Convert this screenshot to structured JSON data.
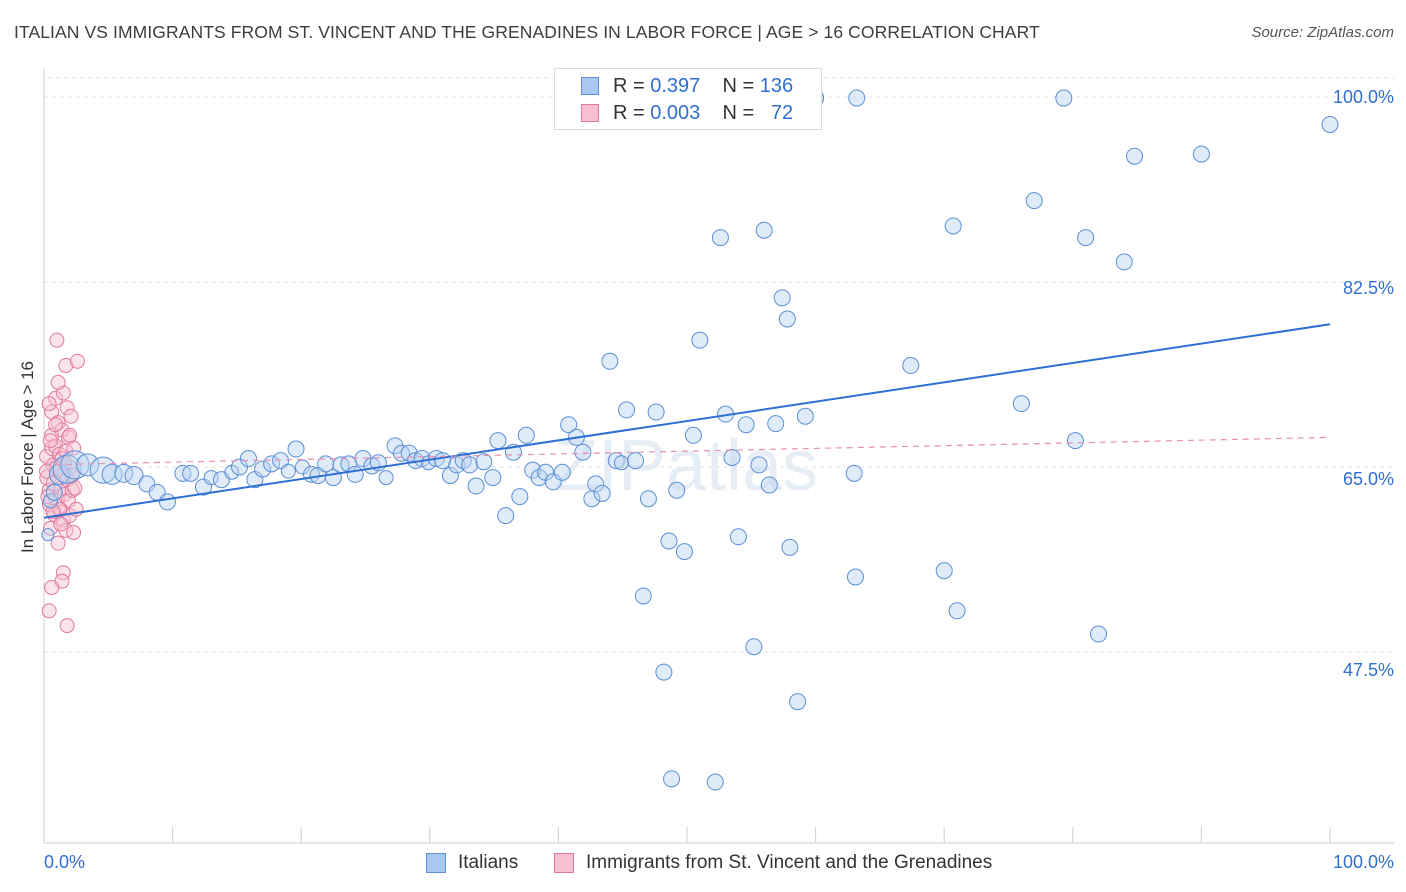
{
  "title": "ITALIAN VS IMMIGRANTS FROM ST. VINCENT AND THE GRENADINES IN LABOR FORCE | AGE > 16 CORRELATION CHART",
  "source": "Source: ZipAtlas.com",
  "watermark": "ZIPatlas",
  "legend_top": {
    "rows": [
      {
        "r_label": "R =",
        "r_value": "0.397",
        "n_label": "N =",
        "n_value": "136",
        "color": "#a9c8ef",
        "border": "#5b8fd6"
      },
      {
        "r_label": "R =",
        "r_value": "0.003",
        "n_label": "N =",
        "n_value": "72",
        "color": "#f7c0d0",
        "border": "#e07aa0"
      }
    ]
  },
  "bottom_legend": [
    {
      "label": "Italians",
      "color": "#a9c8ef",
      "border": "#5b8fd6"
    },
    {
      "label": "Immigrants from St. Vincent and the Grenadines",
      "color": "#f7c0d0",
      "border": "#e07aa0"
    }
  ],
  "axes": {
    "ylabel": "In Labor Force | Age > 16",
    "x_min_label": "0.0%",
    "x_max_label": "100.0%",
    "y_ticks": [
      "100.0%",
      "82.5%",
      "65.0%",
      "47.5%"
    ]
  },
  "chart_data": {
    "type": "scatter",
    "xlabel": "",
    "ylabel": "In Labor Force | Age > 16",
    "xlim": [
      0,
      100
    ],
    "ylim": [
      30,
      100
    ],
    "y_ticks": [
      47.5,
      65.0,
      82.5,
      100.0
    ],
    "grid": true,
    "series": [
      {
        "name": "Italians",
        "color": "#6fa0e0",
        "trend": {
          "x": [
            0,
            100
          ],
          "y": [
            60.2,
            78.5
          ],
          "color": "#2f6fd1",
          "dashed": false
        },
        "points": [
          [
            0.3,
            58.6,
            6
          ],
          [
            0.5,
            61.8,
            7
          ],
          [
            0.8,
            62.6,
            8
          ],
          [
            1.2,
            64.3,
            10
          ],
          [
            1.8,
            64.8,
            14
          ],
          [
            2.4,
            65.2,
            14
          ],
          [
            3.4,
            65.2,
            11
          ],
          [
            4.6,
            64.7,
            13
          ],
          [
            5.3,
            64.3,
            10
          ],
          [
            6.2,
            64.4,
            9
          ],
          [
            7.0,
            64.2,
            9
          ],
          [
            8.0,
            63.4,
            8
          ],
          [
            8.8,
            62.6,
            8
          ],
          [
            9.6,
            61.7,
            8
          ],
          [
            10.8,
            64.4,
            8
          ],
          [
            11.4,
            64.4,
            8
          ],
          [
            12.4,
            63.1,
            8
          ],
          [
            13.0,
            64.0,
            7
          ],
          [
            13.8,
            63.8,
            8
          ],
          [
            14.6,
            64.5,
            7
          ],
          [
            15.2,
            65.0,
            8
          ],
          [
            15.9,
            65.8,
            8
          ],
          [
            16.4,
            63.8,
            8
          ],
          [
            17.0,
            64.8,
            8
          ],
          [
            17.7,
            65.3,
            8
          ],
          [
            18.4,
            65.6,
            8
          ],
          [
            19.0,
            64.6,
            7
          ],
          [
            19.6,
            66.7,
            8
          ],
          [
            20.1,
            65.0,
            7
          ],
          [
            20.8,
            64.3,
            8
          ],
          [
            21.3,
            64.2,
            8
          ],
          [
            21.9,
            65.3,
            8
          ],
          [
            22.5,
            64.0,
            8
          ],
          [
            23.1,
            65.2,
            8
          ],
          [
            23.7,
            65.3,
            8
          ],
          [
            24.2,
            64.3,
            8
          ],
          [
            24.8,
            65.8,
            8
          ],
          [
            25.5,
            65.1,
            8
          ],
          [
            26.0,
            65.4,
            8
          ],
          [
            26.6,
            64.0,
            7
          ],
          [
            27.3,
            67.0,
            8
          ],
          [
            27.8,
            66.3,
            8
          ],
          [
            28.4,
            66.3,
            8
          ],
          [
            28.9,
            65.6,
            8
          ],
          [
            29.4,
            65.8,
            8
          ],
          [
            29.9,
            65.4,
            7
          ],
          [
            30.5,
            65.8,
            8
          ],
          [
            31.0,
            65.6,
            8
          ],
          [
            31.6,
            64.2,
            8
          ],
          [
            32.1,
            65.2,
            8
          ],
          [
            32.6,
            65.6,
            8
          ],
          [
            33.1,
            65.2,
            8
          ],
          [
            33.6,
            63.2,
            8
          ],
          [
            34.2,
            65.5,
            8
          ],
          [
            34.9,
            64.0,
            8
          ],
          [
            35.3,
            67.5,
            8
          ],
          [
            35.9,
            60.4,
            8
          ],
          [
            36.5,
            66.4,
            8
          ],
          [
            37.0,
            62.2,
            8
          ],
          [
            37.5,
            68.0,
            8
          ],
          [
            38.0,
            64.7,
            8
          ],
          [
            38.5,
            64.0,
            8
          ],
          [
            39.0,
            64.5,
            8
          ],
          [
            39.6,
            63.6,
            8
          ],
          [
            40.3,
            64.5,
            8
          ],
          [
            40.8,
            69.0,
            8
          ],
          [
            41.4,
            67.8,
            8
          ],
          [
            41.9,
            66.4,
            8
          ],
          [
            42.6,
            62.0,
            8
          ],
          [
            42.9,
            63.4,
            8
          ],
          [
            43.4,
            62.5,
            8
          ],
          [
            44.0,
            75.0,
            8
          ],
          [
            44.5,
            65.6,
            8
          ],
          [
            44.9,
            65.4,
            7
          ],
          [
            45.3,
            70.4,
            8
          ],
          [
            46.0,
            65.6,
            8
          ],
          [
            46.6,
            52.8,
            8
          ],
          [
            47.0,
            62.0,
            8
          ],
          [
            47.6,
            70.2,
            8
          ],
          [
            48.2,
            45.6,
            8
          ],
          [
            48.6,
            58.0,
            8
          ],
          [
            48.8,
            35.5,
            8
          ],
          [
            49.2,
            62.8,
            8
          ],
          [
            49.8,
            57.0,
            8
          ],
          [
            50.5,
            68.0,
            8
          ],
          [
            51.0,
            77.0,
            8
          ],
          [
            52.2,
            35.2,
            8
          ],
          [
            52.6,
            86.7,
            8
          ],
          [
            53.0,
            70.0,
            8
          ],
          [
            53.5,
            65.9,
            8
          ],
          [
            54.0,
            58.4,
            8
          ],
          [
            54.6,
            69.0,
            8
          ],
          [
            55.2,
            48.0,
            8
          ],
          [
            55.6,
            65.2,
            8
          ],
          [
            56.0,
            87.4,
            8
          ],
          [
            56.4,
            63.3,
            8
          ],
          [
            56.8,
            99.7,
            8
          ],
          [
            56.9,
            69.1,
            8
          ],
          [
            57.4,
            81.0,
            8
          ],
          [
            57.8,
            79.0,
            8
          ],
          [
            58.0,
            57.4,
            8
          ],
          [
            58.6,
            42.8,
            8
          ],
          [
            59.2,
            69.8,
            8
          ],
          [
            60.0,
            99.9,
            8
          ],
          [
            60.0,
            99.9,
            8
          ],
          [
            63.2,
            99.9,
            8
          ],
          [
            63.0,
            64.4,
            8
          ],
          [
            63.1,
            54.6,
            8
          ],
          [
            67.4,
            74.6,
            8
          ],
          [
            70.0,
            55.2,
            8
          ],
          [
            70.7,
            87.8,
            8
          ],
          [
            71.0,
            51.4,
            8
          ],
          [
            76.0,
            71.0,
            8
          ],
          [
            77.0,
            90.2,
            8
          ],
          [
            79.3,
            99.9,
            8
          ],
          [
            80.2,
            67.5,
            8
          ],
          [
            81.0,
            86.7,
            8
          ],
          [
            82.0,
            49.2,
            8
          ],
          [
            84.0,
            84.4,
            8
          ],
          [
            84.8,
            94.4,
            8
          ],
          [
            90.0,
            94.6,
            8
          ],
          [
            100,
            97.4,
            8
          ]
        ]
      },
      {
        "name": "Immigrants from St. Vincent and the Grenadines",
        "color": "#f08cb0",
        "trend": {
          "x": [
            0,
            100
          ],
          "y": [
            65.2,
            67.8
          ],
          "color": "#e891ae",
          "dashed": true
        },
        "points": [
          [
            0.2,
            66.0,
            7
          ],
          [
            0.3,
            64.0,
            8
          ],
          [
            0.4,
            62.8,
            7
          ],
          [
            0.5,
            61.5,
            8
          ],
          [
            0.5,
            59.2,
            7
          ],
          [
            0.6,
            68.0,
            7
          ],
          [
            0.6,
            70.2,
            7
          ],
          [
            0.7,
            66.8,
            8
          ],
          [
            0.7,
            65.2,
            7
          ],
          [
            0.8,
            63.5,
            8
          ],
          [
            0.8,
            60.5,
            7
          ],
          [
            0.9,
            71.5,
            7
          ],
          [
            0.9,
            67.0,
            7
          ],
          [
            1.0,
            64.8,
            8
          ],
          [
            1.0,
            62.0,
            8
          ],
          [
            1.1,
            69.2,
            7
          ],
          [
            1.1,
            57.8,
            7
          ],
          [
            1.2,
            66.2,
            7
          ],
          [
            1.3,
            63.0,
            7
          ],
          [
            1.3,
            61.0,
            7
          ],
          [
            1.4,
            68.5,
            7
          ],
          [
            1.4,
            65.8,
            7
          ],
          [
            1.5,
            72.0,
            7
          ],
          [
            1.5,
            60.0,
            7
          ],
          [
            1.6,
            64.4,
            7
          ],
          [
            1.6,
            62.4,
            7
          ],
          [
            1.7,
            66.5,
            7
          ],
          [
            1.7,
            59.0,
            7
          ],
          [
            1.8,
            70.6,
            7
          ],
          [
            1.8,
            63.8,
            7
          ],
          [
            1.9,
            67.8,
            7
          ],
          [
            1.9,
            61.8,
            7
          ],
          [
            2.0,
            65.0,
            7
          ],
          [
            2.0,
            60.4,
            7
          ],
          [
            2.1,
            69.8,
            7
          ],
          [
            2.2,
            62.8,
            7
          ],
          [
            2.3,
            58.8,
            7
          ],
          [
            2.3,
            66.8,
            7
          ],
          [
            1.0,
            77.0,
            7
          ],
          [
            1.7,
            74.6,
            7
          ],
          [
            2.6,
            75.0,
            7
          ],
          [
            1.5,
            55.0,
            7
          ],
          [
            1.4,
            54.2,
            7
          ],
          [
            1.8,
            50.0,
            7
          ],
          [
            0.4,
            51.4,
            7
          ],
          [
            0.6,
            53.6,
            7
          ],
          [
            0.2,
            64.6,
            7
          ],
          [
            0.3,
            62.2,
            7
          ],
          [
            1.2,
            61.0,
            7
          ],
          [
            2.4,
            63.0,
            7
          ],
          [
            0.9,
            69.0,
            7
          ],
          [
            1.1,
            73.0,
            7
          ],
          [
            2.0,
            68.0,
            7
          ],
          [
            0.5,
            67.5,
            7
          ],
          [
            1.6,
            65.4,
            7
          ],
          [
            2.2,
            64.2,
            7
          ],
          [
            0.7,
            60.8,
            7
          ],
          [
            1.3,
            59.6,
            7
          ],
          [
            2.5,
            61.0,
            7
          ],
          [
            0.4,
            71.0,
            7
          ]
        ]
      }
    ]
  }
}
